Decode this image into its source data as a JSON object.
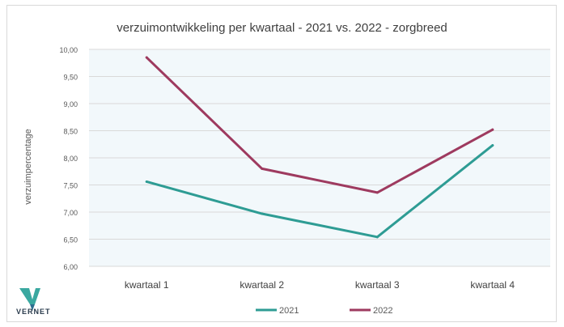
{
  "chart_data": {
    "type": "line",
    "title": "verzuimontwikkeling per kwartaal - 2021 vs. 2022 - zorgbreed",
    "xlabel": "",
    "ylabel": "verzuimpercentage",
    "categories": [
      "kwartaal 1",
      "kwartaal 2",
      "kwartaal 3",
      "kwartaal 4"
    ],
    "ylim": [
      6.0,
      10.0
    ],
    "yticks": [
      "6,00",
      "6,50",
      "7,00",
      "7,50",
      "8,00",
      "8,50",
      "9,00",
      "9,50",
      "10,00"
    ],
    "grid": true,
    "legend_position": "bottom",
    "series": [
      {
        "name": "2021",
        "color": "#2e9c94",
        "values": [
          7.56,
          6.97,
          6.54,
          8.23
        ]
      },
      {
        "name": "2022",
        "color": "#9e3a5f",
        "values": [
          9.85,
          7.8,
          7.36,
          8.52
        ]
      }
    ]
  },
  "branding": {
    "logo_text": "VERNET",
    "logo_icon": "vernet-logo-icon"
  }
}
